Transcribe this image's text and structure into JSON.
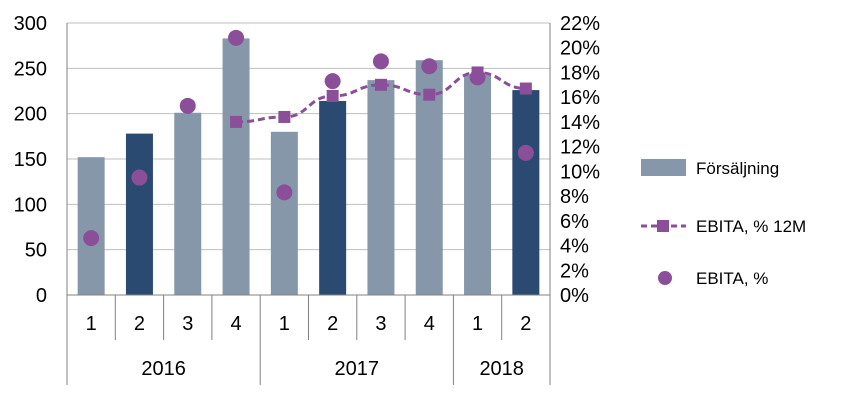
{
  "chart_data": {
    "type": "bar",
    "categories": [
      "1",
      "2",
      "3",
      "4",
      "1",
      "2",
      "3",
      "4",
      "1",
      "2"
    ],
    "years": [
      {
        "label": "2016",
        "count": 4
      },
      {
        "label": "2017",
        "count": 4
      },
      {
        "label": "2018",
        "count": 2
      }
    ],
    "series": [
      {
        "name": "Försäljning",
        "type": "bar",
        "axis": "left",
        "values": [
          152,
          178,
          201,
          283,
          180,
          214,
          237,
          259,
          243,
          226
        ]
      },
      {
        "name": "EBITA, % 12M",
        "type": "line",
        "axis": "right",
        "values": [
          null,
          null,
          null,
          14.0,
          14.4,
          16.1,
          17.0,
          16.2,
          18.0,
          16.7
        ]
      },
      {
        "name": "EBITA, %",
        "type": "scatter",
        "axis": "right",
        "values": [
          4.6,
          9.5,
          15.3,
          20.8,
          8.3,
          17.3,
          18.9,
          18.5,
          17.6,
          11.5
        ]
      }
    ],
    "ylim_left": [
      0,
      300
    ],
    "yticks_left": [
      "0",
      "50",
      "100",
      "150",
      "200",
      "250",
      "300"
    ],
    "ylim_right": [
      0,
      22
    ],
    "yticks_right": [
      "0%",
      "2%",
      "4%",
      "6%",
      "8%",
      "10%",
      "12%",
      "14%",
      "16%",
      "18%",
      "20%",
      "22%"
    ],
    "grid": true,
    "legend_position": "right",
    "colors": {
      "bar_light": "#8797aa",
      "bar_dark": "#2b4a72",
      "purple": "#8b4f9a",
      "grid": "#bfbfbf",
      "axis": "#808080"
    },
    "dark_bars": [
      1,
      5,
      9
    ]
  }
}
